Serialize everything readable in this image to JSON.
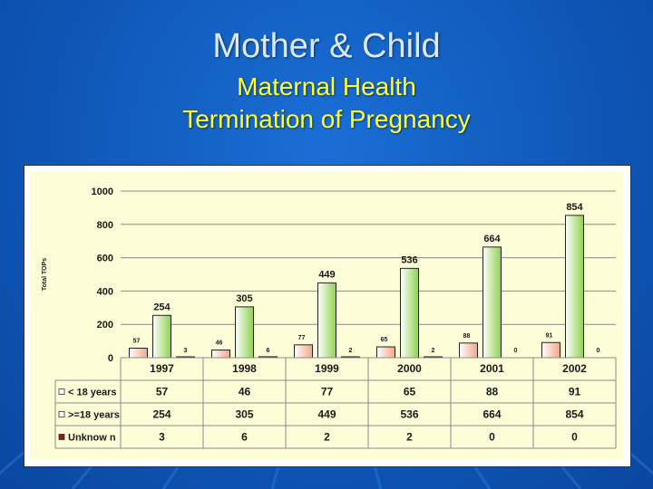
{
  "slide": {
    "title": "Mother & Child",
    "subtitle_line1": "Maternal Health",
    "subtitle_line2": "Termination of Pregnancy"
  },
  "colors": {
    "background": "#0f58b8",
    "title": "#dde8f6",
    "subtitle": "#ffff33",
    "series_under18": "#f3a58a",
    "series_18plus": "#8fd14f",
    "series_unknown": "#8b1a1a"
  },
  "chart_data": {
    "type": "bar",
    "title": "",
    "xlabel": "",
    "ylabel": "Total TOPs",
    "ylim": [
      0,
      1000
    ],
    "yticks": [
      0,
      200,
      400,
      600,
      800,
      1000
    ],
    "categories": [
      "1997",
      "1998",
      "1999",
      "2000",
      "2001",
      "2002"
    ],
    "series": [
      {
        "name": "< 18 years",
        "values": [
          57,
          46,
          77,
          65,
          88,
          91
        ]
      },
      {
        "name": ">=18 years",
        "values": [
          254,
          305,
          449,
          536,
          664,
          854
        ]
      },
      {
        "name": "Unknow n",
        "values": [
          3,
          6,
          2,
          2,
          0,
          0
        ]
      }
    ],
    "legend": "bottom data table",
    "grid": true
  }
}
